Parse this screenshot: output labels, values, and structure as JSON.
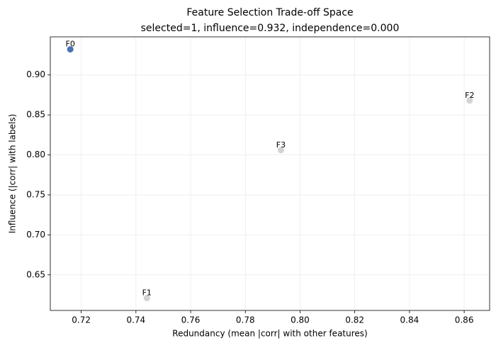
{
  "chart_data": {
    "type": "scatter",
    "title": "Feature Selection Trade-off Space",
    "subtitle": "selected=1, influence=0.932, independence=0.000",
    "x_label": "Redundancy (mean |corr| with other features)",
    "y_label": "Influence (|corr| with labels)",
    "x": [
      0.716,
      0.744,
      0.862,
      0.793
    ],
    "values": [
      0.932,
      0.621,
      0.868,
      0.806
    ],
    "point_labels": [
      "F0",
      "F1",
      "F2",
      "F3"
    ],
    "colors": [
      "#4c72b0",
      "#d3d3d3",
      "#d3d3d3",
      "#d3d3d3"
    ],
    "xlim": [
      0.7087,
      0.8693
    ],
    "ylim": [
      0.6055,
      0.9476
    ],
    "xticks": [
      0.72,
      0.74,
      0.76,
      0.78,
      {
        "value": 0.8,
        "label": "0.80"
      },
      0.82,
      0.84,
      0.86
    ],
    "yticks": [
      0.65,
      {
        "value": 0.7,
        "label": "0.70"
      },
      0.75,
      {
        "value": 0.8,
        "label": "0.80"
      },
      0.85,
      {
        "value": 0.9,
        "label": "0.90"
      }
    ],
    "grid": true
  }
}
